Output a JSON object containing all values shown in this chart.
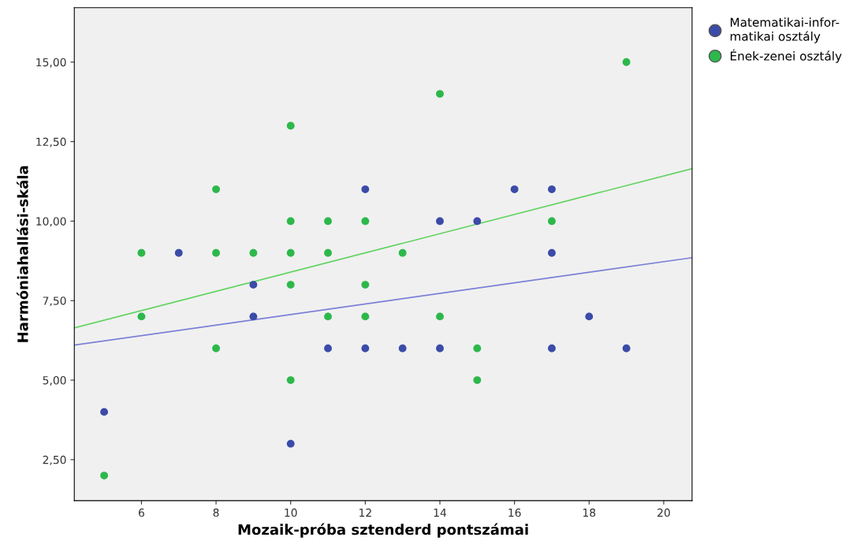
{
  "chart_data": {
    "type": "scatter",
    "xlabel": "Mozaik-próba sztenderd pontszámai",
    "ylabel": "Harmóniahallási-skála",
    "xlim": [
      4.2,
      20.76
    ],
    "ylim": [
      1.21,
      16.71
    ],
    "xticks": [
      6,
      8,
      10,
      12,
      14,
      16,
      18,
      20
    ],
    "yticks": [
      {
        "value": 2.5,
        "label": "2,50"
      },
      {
        "value": 5,
        "label": "5,00"
      },
      {
        "value": 7.5,
        "label": "7,50"
      },
      {
        "value": 10,
        "label": "10,00"
      },
      {
        "value": 12.5,
        "label": "12,50"
      },
      {
        "value": 15,
        "label": "15,00"
      }
    ],
    "grid": false,
    "legend": "top right",
    "marker": "circle",
    "series": [
      {
        "name": "Matematikai-infor-\nmatikai osztály",
        "color": "#3b4ba8",
        "x": [
          5,
          7,
          9,
          9,
          10,
          11,
          12,
          12,
          13,
          14,
          14,
          15,
          16,
          17,
          17,
          17,
          18,
          19
        ],
        "values": [
          4,
          9,
          8,
          7,
          3,
          6,
          11,
          6,
          6,
          10,
          6,
          10,
          11,
          11,
          9,
          6,
          7,
          6
        ]
      },
      {
        "name": "Ének-zenei osztály",
        "color": "#2db84b",
        "x": [
          5,
          6,
          6,
          8,
          8,
          8,
          9,
          10,
          10,
          10,
          10,
          10,
          11,
          11,
          11,
          12,
          12,
          12,
          13,
          14,
          14,
          15,
          15,
          17,
          19
        ],
        "values": [
          2,
          9,
          7,
          11,
          9,
          6,
          9,
          13,
          10,
          9,
          8,
          5,
          10,
          9,
          7,
          10,
          8,
          7,
          9,
          14,
          7,
          6,
          5,
          10,
          15
        ]
      },
      {
        "type": "line",
        "marker": "none",
        "color": "#7b7fd6",
        "x": [
          4.2,
          20.76
        ],
        "values": [
          6.1,
          8.85
        ]
      },
      {
        "type": "line",
        "marker": "none",
        "color": "#5fd35f",
        "x": [
          4.2,
          20.76
        ],
        "values": [
          6.64,
          11.65
        ]
      }
    ]
  }
}
